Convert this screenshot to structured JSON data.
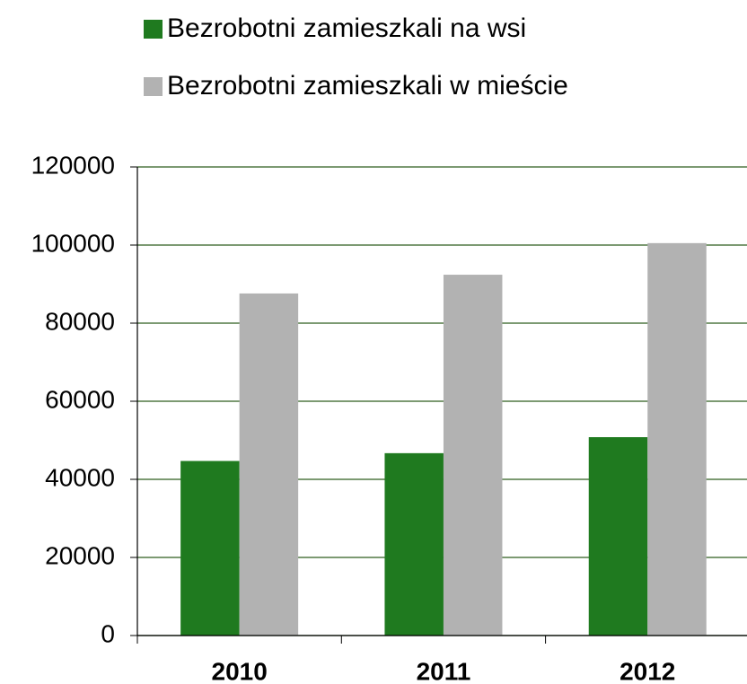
{
  "chart_data": {
    "type": "bar",
    "categories": [
      "2010",
      "2011",
      "2012"
    ],
    "series": [
      {
        "name": "Bezrobotni zamieszkali na wsi",
        "color": "#1f7a1f",
        "values": [
          44700,
          46700,
          50800
        ]
      },
      {
        "name": "Bezrobotni zamieszkali w mieście",
        "color": "#b2b2b2",
        "values": [
          87600,
          92400,
          100500
        ]
      }
    ],
    "ylim": [
      0,
      120000
    ],
    "yticks": [
      0,
      20000,
      40000,
      60000,
      80000,
      100000,
      120000
    ],
    "grid": true,
    "grid_color": "#2f5e1e"
  }
}
